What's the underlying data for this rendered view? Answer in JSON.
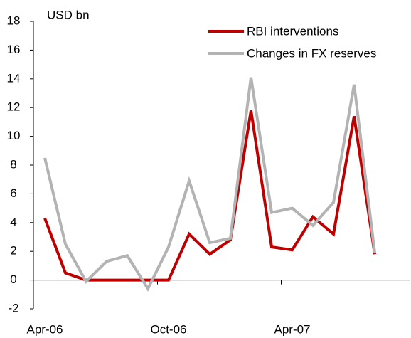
{
  "chart_data": {
    "type": "line",
    "annotation": "USD bn",
    "categories": [
      "Apr-06",
      null,
      null,
      null,
      null,
      null,
      "Oct-06",
      null,
      null,
      null,
      null,
      null,
      "Apr-07",
      null,
      null,
      null,
      null
    ],
    "series": [
      {
        "name": "RBI interventions",
        "color": "#c00000",
        "values": [
          4.3,
          0.5,
          0,
          0,
          0,
          0,
          0,
          3.2,
          1.8,
          2.8,
          11.8,
          2.3,
          2.1,
          4.4,
          3.2,
          11.4,
          1.8
        ]
      },
      {
        "name": "Changes in FX reserves",
        "color": "#b3b3b3",
        "values": [
          8.5,
          2.5,
          -0.1,
          1.3,
          1.7,
          -0.6,
          2.3,
          6.9,
          2.6,
          2.9,
          14.1,
          4.7,
          5.0,
          3.8,
          5.4,
          13.6,
          1.9
        ]
      }
    ],
    "ylim": [
      -2,
      18
    ],
    "yticks": [
      -2,
      0,
      2,
      4,
      6,
      8,
      10,
      12,
      14,
      16,
      18
    ],
    "legend": "top-right"
  }
}
